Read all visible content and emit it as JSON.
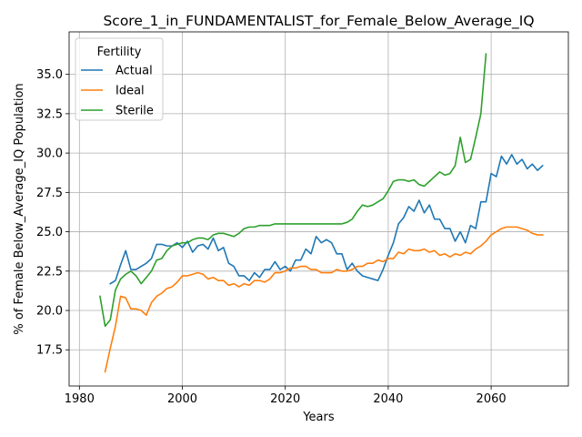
{
  "chart_data": {
    "type": "line",
    "title": "Score_1_in_FUNDAMENTALIST_for_Female_Below_Average_IQ",
    "xlabel": "Years",
    "ylabel": "% of Female Below_Average_IQ Population",
    "xlim": [
      1978,
      2075
    ],
    "ylim": [
      15.2,
      37.7
    ],
    "xticks": [
      1980,
      2000,
      2020,
      2040,
      2060
    ],
    "yticks": [
      17.5,
      20.0,
      22.5,
      25.0,
      27.5,
      30.0,
      32.5,
      35.0
    ],
    "ytick_labels": [
      "17.5",
      "20.0",
      "22.5",
      "25.0",
      "27.5",
      "30.0",
      "32.5",
      "35.0"
    ],
    "grid": true,
    "legend": {
      "title": "Fertility",
      "placement": "top-left"
    },
    "series": [
      {
        "name": "Actual",
        "color": "#1f77b4",
        "x": [
          1986,
          1987,
          1988,
          1989,
          1990,
          1991,
          1992,
          1993,
          1994,
          1995,
          1996,
          1997,
          1998,
          1999,
          2000,
          2001,
          2002,
          2003,
          2004,
          2005,
          2006,
          2007,
          2008,
          2009,
          2010,
          2011,
          2012,
          2013,
          2014,
          2015,
          2016,
          2017,
          2018,
          2019,
          2020,
          2021,
          2022,
          2023,
          2024,
          2025,
          2026,
          2027,
          2028,
          2029,
          2030,
          2031,
          2032,
          2033,
          2034,
          2035,
          2036,
          2037,
          2038,
          2039,
          2040,
          2041,
          2042,
          2043,
          2044,
          2045,
          2046,
          2047,
          2048,
          2049,
          2050,
          2051,
          2052,
          2053,
          2054,
          2055,
          2056,
          2057,
          2058,
          2059,
          2060,
          2061,
          2062,
          2063,
          2064,
          2065,
          2066,
          2067,
          2068,
          2069,
          2070
        ],
        "y": [
          21.7,
          21.9,
          22.9,
          23.8,
          22.6,
          22.6,
          22.8,
          23.0,
          23.3,
          24.2,
          24.2,
          24.1,
          24.1,
          24.3,
          24.0,
          24.4,
          23.7,
          24.1,
          24.2,
          23.9,
          24.6,
          23.8,
          24.0,
          23.0,
          22.8,
          22.2,
          22.2,
          21.9,
          22.4,
          22.1,
          22.6,
          22.6,
          23.1,
          22.6,
          22.8,
          22.5,
          23.2,
          23.2,
          23.9,
          23.6,
          24.7,
          24.3,
          24.5,
          24.3,
          23.6,
          23.6,
          22.6,
          23.0,
          22.5,
          22.2,
          22.1,
          22.0,
          21.9,
          22.6,
          23.5,
          24.3,
          25.5,
          25.9,
          26.6,
          26.3,
          27.0,
          26.2,
          26.7,
          25.8,
          25.8,
          25.2,
          25.2,
          24.4,
          25.0,
          24.3,
          25.4,
          25.2,
          26.9,
          26.9,
          28.7,
          28.5,
          29.8,
          29.3,
          29.9,
          29.3,
          29.6,
          29.0,
          29.3,
          28.9,
          29.2
        ]
      },
      {
        "name": "Ideal",
        "color": "#ff7f0e",
        "x": [
          1985,
          1986,
          1987,
          1988,
          1989,
          1990,
          1991,
          1992,
          1993,
          1994,
          1995,
          1996,
          1997,
          1998,
          1999,
          2000,
          2001,
          2002,
          2003,
          2004,
          2005,
          2006,
          2007,
          2008,
          2009,
          2010,
          2011,
          2012,
          2013,
          2014,
          2015,
          2016,
          2017,
          2018,
          2019,
          2020,
          2021,
          2022,
          2023,
          2024,
          2025,
          2026,
          2027,
          2028,
          2029,
          2030,
          2031,
          2032,
          2033,
          2034,
          2035,
          2036,
          2037,
          2038,
          2039,
          2040,
          2041,
          2042,
          2043,
          2044,
          2045,
          2046,
          2047,
          2048,
          2049,
          2050,
          2051,
          2052,
          2053,
          2054,
          2055,
          2056,
          2057,
          2058,
          2059,
          2060,
          2061,
          2062,
          2063,
          2064,
          2065,
          2066,
          2067,
          2068,
          2069,
          2070
        ],
        "y": [
          16.1,
          17.6,
          19.0,
          20.9,
          20.8,
          20.1,
          20.1,
          20.0,
          19.7,
          20.5,
          20.9,
          21.1,
          21.4,
          21.5,
          21.8,
          22.2,
          22.2,
          22.3,
          22.4,
          22.3,
          22.0,
          22.1,
          21.9,
          21.9,
          21.6,
          21.7,
          21.5,
          21.7,
          21.6,
          21.9,
          21.9,
          21.8,
          22.0,
          22.4,
          22.4,
          22.5,
          22.7,
          22.7,
          22.8,
          22.8,
          22.6,
          22.6,
          22.4,
          22.4,
          22.4,
          22.6,
          22.5,
          22.5,
          22.6,
          22.8,
          22.8,
          23.0,
          23.0,
          23.2,
          23.1,
          23.3,
          23.3,
          23.7,
          23.6,
          23.9,
          23.8,
          23.8,
          23.9,
          23.7,
          23.8,
          23.5,
          23.6,
          23.4,
          23.6,
          23.5,
          23.7,
          23.6,
          23.9,
          24.1,
          24.4,
          24.8,
          25.0,
          25.2,
          25.3,
          25.3,
          25.3,
          25.2,
          25.1,
          24.9,
          24.8,
          24.8
        ]
      },
      {
        "name": "Sterile",
        "color": "#2ca02c",
        "x": [
          1984,
          1985,
          1986,
          1987,
          1988,
          1989,
          1990,
          1991,
          1992,
          1993,
          1994,
          1995,
          1996,
          1997,
          1998,
          1999,
          2000,
          2001,
          2002,
          2003,
          2004,
          2005,
          2006,
          2007,
          2008,
          2009,
          2010,
          2011,
          2012,
          2013,
          2014,
          2015,
          2016,
          2017,
          2018,
          2019,
          2020,
          2021,
          2022,
          2023,
          2024,
          2025,
          2026,
          2027,
          2028,
          2029,
          2030,
          2031,
          2032,
          2033,
          2034,
          2035,
          2036,
          2037,
          2038,
          2039,
          2040,
          2041,
          2042,
          2043,
          2044,
          2045,
          2046,
          2047,
          2048,
          2049,
          2050,
          2051,
          2052,
          2053,
          2054,
          2055,
          2056,
          2057,
          2058,
          2059
        ],
        "y": [
          20.9,
          19.0,
          19.4,
          21.3,
          22.0,
          22.3,
          22.5,
          22.2,
          21.7,
          22.1,
          22.5,
          23.2,
          23.3,
          23.8,
          24.1,
          24.2,
          24.3,
          24.3,
          24.5,
          24.6,
          24.6,
          24.5,
          24.8,
          24.9,
          24.9,
          24.8,
          24.7,
          24.9,
          25.2,
          25.3,
          25.3,
          25.4,
          25.4,
          25.4,
          25.5,
          25.5,
          25.5,
          25.5,
          25.5,
          25.5,
          25.5,
          25.5,
          25.5,
          25.5,
          25.5,
          25.5,
          25.5,
          25.5,
          25.6,
          25.8,
          26.3,
          26.7,
          26.6,
          26.7,
          26.9,
          27.1,
          27.6,
          28.2,
          28.3,
          28.3,
          28.2,
          28.3,
          28.0,
          27.9,
          28.2,
          28.5,
          28.8,
          28.6,
          28.7,
          29.2,
          31.0,
          29.4,
          29.6,
          31.0,
          32.5,
          36.3
        ]
      }
    ]
  }
}
